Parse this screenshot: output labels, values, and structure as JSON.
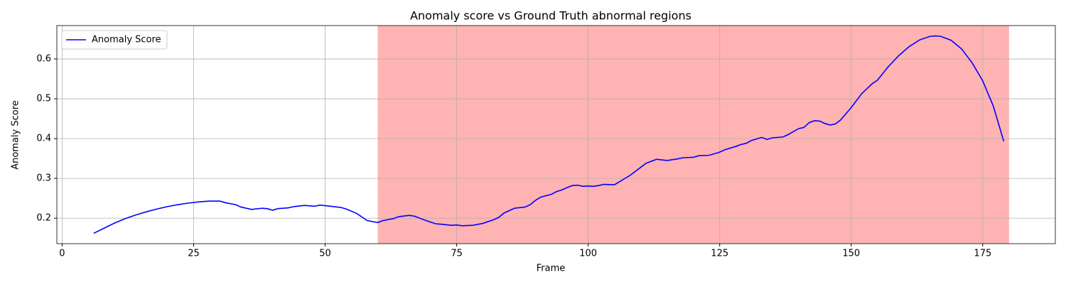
{
  "chart_data": {
    "type": "line",
    "title": "Anomaly score vs Ground Truth abnormal regions",
    "x_label": "Frame",
    "y_label": "Anomaly Score",
    "x": [
      6,
      8,
      10,
      12,
      14,
      16,
      18,
      20,
      22,
      24,
      26,
      28,
      30,
      31,
      33,
      34,
      36,
      38,
      39,
      40,
      41,
      43,
      44,
      46,
      48,
      49,
      51,
      53,
      54,
      56,
      58,
      60,
      61,
      63,
      64,
      66,
      67,
      69,
      71,
      72,
      74,
      75,
      76,
      78,
      80,
      82,
      83,
      84,
      86,
      88,
      89,
      90,
      91,
      93,
      94,
      95,
      96,
      97,
      98,
      99,
      100,
      101,
      102,
      103,
      105,
      107,
      108,
      110,
      111,
      113,
      115,
      117,
      118,
      120,
      121,
      123,
      125,
      126,
      128,
      129,
      130,
      131,
      133,
      134,
      135,
      137,
      138,
      140,
      141,
      142,
      143,
      144,
      145,
      146,
      147,
      148,
      150,
      152,
      154,
      155,
      157,
      159,
      161,
      163,
      165,
      166,
      167,
      169,
      171,
      173,
      175,
      177,
      179
    ],
    "series": [
      {
        "name": "Anomaly Score",
        "color": "#0000ff",
        "values": [
          0.162,
          0.175,
          0.188,
          0.199,
          0.208,
          0.216,
          0.223,
          0.229,
          0.234,
          0.238,
          0.241,
          0.243,
          0.243,
          0.239,
          0.234,
          0.228,
          0.222,
          0.225,
          0.224,
          0.22,
          0.224,
          0.226,
          0.229,
          0.232,
          0.23,
          0.233,
          0.23,
          0.227,
          0.223,
          0.212,
          0.194,
          0.189,
          0.194,
          0.199,
          0.204,
          0.207,
          0.205,
          0.195,
          0.186,
          0.185,
          0.182,
          0.183,
          0.181,
          0.182,
          0.187,
          0.196,
          0.202,
          0.213,
          0.225,
          0.228,
          0.234,
          0.245,
          0.253,
          0.26,
          0.267,
          0.271,
          0.277,
          0.282,
          0.283,
          0.28,
          0.281,
          0.28,
          0.282,
          0.285,
          0.284,
          0.3,
          0.308,
          0.328,
          0.338,
          0.348,
          0.345,
          0.349,
          0.352,
          0.353,
          0.357,
          0.358,
          0.366,
          0.372,
          0.38,
          0.385,
          0.388,
          0.395,
          0.403,
          0.398,
          0.402,
          0.404,
          0.41,
          0.425,
          0.428,
          0.44,
          0.445,
          0.444,
          0.438,
          0.434,
          0.437,
          0.447,
          0.478,
          0.513,
          0.538,
          0.547,
          0.58,
          0.608,
          0.631,
          0.648,
          0.657,
          0.658,
          0.657,
          0.647,
          0.625,
          0.59,
          0.545,
          0.482,
          0.393
        ]
      }
    ],
    "shaded_region": [
      60,
      180
    ],
    "shaded_color": "#ffb3b3",
    "xlim": [
      -1,
      188.8
    ],
    "xticks": [
      0,
      25,
      50,
      75,
      100,
      125,
      150,
      175
    ],
    "ylim": [
      0.136,
      0.684
    ],
    "yticks": [
      0.2,
      0.3,
      0.4,
      0.5,
      0.6
    ],
    "grid": true,
    "legend": "upper-left"
  }
}
